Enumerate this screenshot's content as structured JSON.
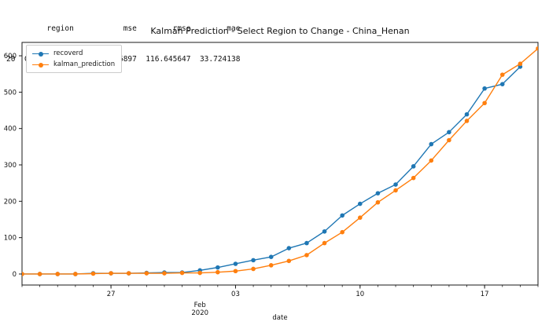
{
  "header": {
    "line1": "         region           mse        rmse        mae",
    "line2": "20  China_Henan  13606.206897  116.645647  33.724138"
  },
  "chart_data": {
    "type": "line",
    "title": "Kalman Prediction - Select Region to Change - China_Henan",
    "xlabel": "date",
    "ylabel": "",
    "legend_position": "upper left",
    "grid": false,
    "ylim": [
      -30.3,
      636.8
    ],
    "yticks": [
      0,
      100,
      200,
      300,
      400,
      500,
      600
    ],
    "x_dates": [
      "2020-01-22",
      "2020-01-23",
      "2020-01-24",
      "2020-01-25",
      "2020-01-26",
      "2020-01-27",
      "2020-01-28",
      "2020-01-29",
      "2020-01-30",
      "2020-01-31",
      "2020-02-01",
      "2020-02-02",
      "2020-02-03",
      "2020-02-04",
      "2020-02-05",
      "2020-02-06",
      "2020-02-07",
      "2020-02-08",
      "2020-02-09",
      "2020-02-10",
      "2020-02-11",
      "2020-02-12",
      "2020-02-13",
      "2020-02-14",
      "2020-02-15",
      "2020-02-16",
      "2020-02-17",
      "2020-02-18",
      "2020-02-19",
      "2020-02-20"
    ],
    "x_major_ticks": [
      {
        "day": 5,
        "label": "27"
      },
      {
        "day": 12,
        "label": "03"
      },
      {
        "day": 19,
        "label": "10"
      },
      {
        "day": 26,
        "label": "17"
      }
    ],
    "x_month_label": {
      "day": 10,
      "lines": [
        "Feb",
        "2020"
      ]
    },
    "series": [
      {
        "name": "recoverd",
        "color": "#1f77b4",
        "values": [
          0,
          0,
          0,
          0,
          2,
          2,
          2,
          3,
          4,
          4,
          10,
          18,
          28,
          38,
          47,
          71,
          85,
          117,
          161,
          193,
          222,
          246,
          296,
          357,
          390,
          439,
          510,
          522,
          570
        ]
      },
      {
        "name": "kalman_prediction",
        "color": "#ff7f0e",
        "values": [
          0,
          0,
          0,
          0,
          1,
          2,
          2,
          2,
          2,
          3,
          3,
          5,
          8,
          14,
          24,
          36,
          52,
          85,
          115,
          155,
          197,
          230,
          264,
          312,
          368,
          421,
          470,
          548,
          578,
          620
        ]
      }
    ]
  },
  "stats": {
    "row_index": "20",
    "region": "China_Henan",
    "mse": "13606.206897",
    "rmse": "116.645647",
    "mae": "33.724138"
  }
}
